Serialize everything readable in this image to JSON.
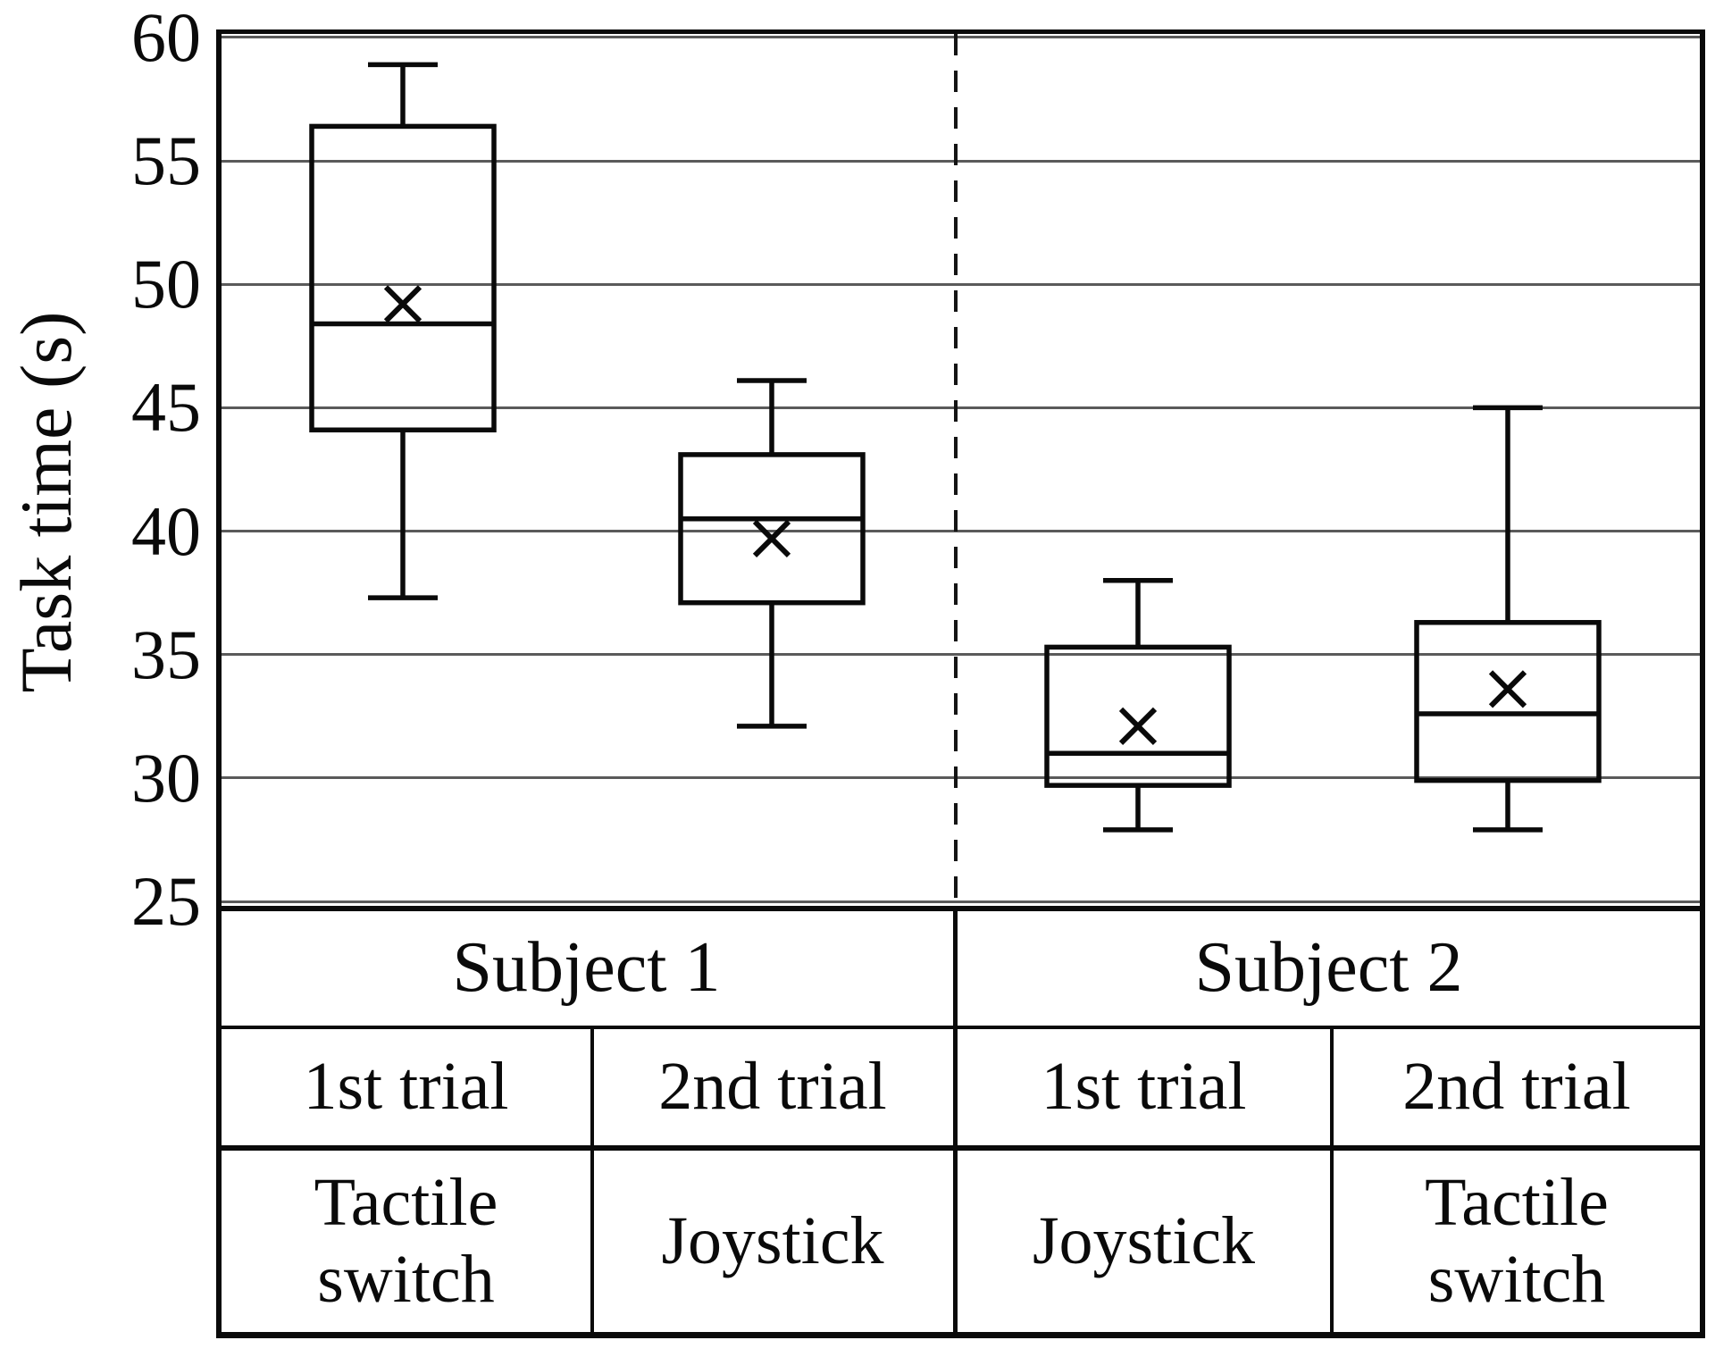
{
  "colors": {
    "ink": "#0a0a0a",
    "gridline": "#5a5a5a",
    "background": "#ffffff"
  },
  "chart_data": {
    "type": "box",
    "title": "",
    "ylabel": "Task time (s)",
    "xlabel": "",
    "ylim": [
      25,
      60.4
    ],
    "grid": true,
    "gridline_values": [
      60,
      55,
      50,
      45,
      40,
      35,
      30,
      25
    ],
    "ytick_labels": [
      "60",
      "55",
      "50",
      "45",
      "40",
      "35",
      "30",
      "25"
    ],
    "ytick_values": [
      60,
      55,
      50,
      45,
      40,
      35,
      30,
      25
    ],
    "mean_marker": "x",
    "group_divider": "vertical dashed line between Subject 1 and Subject 2",
    "series": [
      {
        "subject": "Subject 1",
        "trial": "1st trial",
        "device": "Tactile switch",
        "min": 37.3,
        "q1": 44.1,
        "median": 48.4,
        "mean": 49.2,
        "q3": 56.4,
        "max": 58.9
      },
      {
        "subject": "Subject 1",
        "trial": "2nd trial",
        "device": "Joystick",
        "min": 32.1,
        "q1": 37.1,
        "median": 40.5,
        "mean": 39.7,
        "q3": 43.1,
        "max": 46.1
      },
      {
        "subject": "Subject 2",
        "trial": "1st trial",
        "device": "Joystick",
        "min": 27.9,
        "q1": 29.7,
        "median": 31.0,
        "mean": 32.1,
        "q3": 35.3,
        "max": 38.0
      },
      {
        "subject": "Subject 2",
        "trial": "2nd trial",
        "device": "Tactile switch",
        "min": 27.9,
        "q1": 29.9,
        "median": 32.6,
        "mean": 33.6,
        "q3": 36.3,
        "max": 45.0
      }
    ]
  },
  "table": {
    "subject_row": [
      "Subject 1",
      "Subject 2"
    ],
    "trial_row": [
      "1st trial",
      "2nd trial",
      "1st trial",
      "2nd trial"
    ],
    "device_row": [
      "Tactile switch",
      "Joystick",
      "Joystick",
      "Tactile switch"
    ]
  }
}
